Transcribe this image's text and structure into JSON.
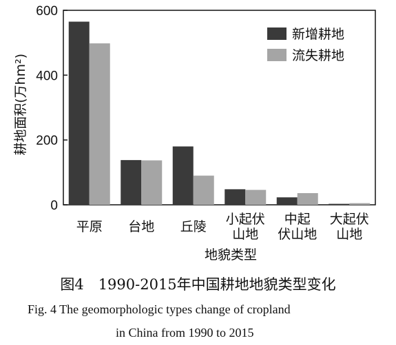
{
  "chart_data": {
    "type": "bar",
    "ylabel": "耕地面积(万hm²)",
    "xlabel": "地貌类型",
    "ylim": [
      0,
      600
    ],
    "yticks": [
      0,
      200,
      400,
      600
    ],
    "categories": [
      [
        "平原"
      ],
      [
        "台地"
      ],
      [
        "丘陵"
      ],
      [
        "小起伏",
        "山地"
      ],
      [
        "中起",
        "伏山地"
      ],
      [
        "大起伏",
        "山地"
      ]
    ],
    "series": [
      {
        "name": "新增耕地",
        "color": "#3a3a3a",
        "values": [
          565,
          138,
          180,
          48,
          23,
          3
        ]
      },
      {
        "name": "流失耕地",
        "color": "#a5a5a5",
        "values": [
          498,
          137,
          90,
          46,
          36,
          5
        ]
      }
    ],
    "legend_position": "top-right",
    "grid": false
  },
  "caption": {
    "chinese": "图4　1990-2015年中国耕地地貌类型变化",
    "english_line1": "Fig. 4   The geomorphologic types change of cropland",
    "english_line2": "in China from 1990 to 2015"
  }
}
